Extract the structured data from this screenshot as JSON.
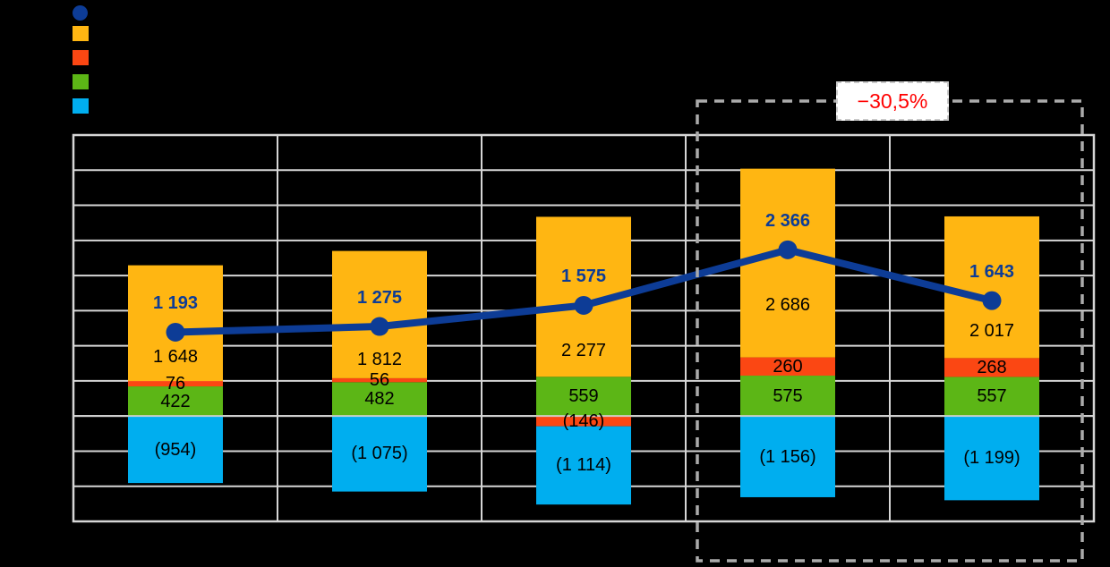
{
  "chart_data": {
    "type": "combo_stacked_bar_line",
    "ylim": [
      -1500,
      4000
    ],
    "gridline_step": 500,
    "grid": true,
    "columns": 5,
    "bar_series": [
      {
        "name": "orange-series",
        "color": "#FFB612",
        "values": [
          1648,
          1812,
          2277,
          2686,
          2017
        ],
        "labels": [
          "1 648",
          "1 812",
          "2 277",
          "2 686",
          "2 017"
        ]
      },
      {
        "name": "red-series",
        "color": "#FB4713",
        "values": [
          76,
          56,
          -146,
          260,
          268
        ],
        "labels": [
          "76",
          "56",
          "(146)",
          "260",
          "268"
        ]
      },
      {
        "name": "green-series",
        "color": "#5CB616",
        "values": [
          422,
          482,
          559,
          575,
          557
        ],
        "labels": [
          "422",
          "482",
          "559",
          "575",
          "557"
        ]
      },
      {
        "name": "cyan-series",
        "color": "#00AEEF",
        "values": [
          -954,
          -1075,
          -1114,
          -1156,
          -1199
        ],
        "labels": [
          "(954)",
          "(1 075)",
          "(1 114)",
          "(1 156)",
          "(1 199)"
        ]
      }
    ],
    "line_series": {
      "name": "line-series",
      "color": "#0D3C96",
      "values": [
        1193,
        1275,
        1575,
        2366,
        1643
      ],
      "labels": [
        "1 193",
        "1 275",
        "1 575",
        "2 366",
        "1 643"
      ]
    },
    "highlight_box": {
      "columns": [
        3,
        4
      ],
      "border_color": "#ABABAB"
    }
  },
  "legend": {
    "items": [
      {
        "name": "line-series-swatch",
        "shape": "circle",
        "color": "#0D3C96"
      },
      {
        "name": "orange-series-swatch",
        "shape": "square",
        "color": "#FFB612"
      },
      {
        "name": "red-series-swatch",
        "shape": "square",
        "color": "#FB4713"
      },
      {
        "name": "green-series-swatch",
        "shape": "square",
        "color": "#5CB616"
      },
      {
        "name": "cyan-series-swatch",
        "shape": "square",
        "color": "#00AEEF"
      }
    ]
  },
  "annotation": {
    "label": "−30,5%",
    "color": "#FF0000"
  },
  "grid_color": "#D6D6D6"
}
